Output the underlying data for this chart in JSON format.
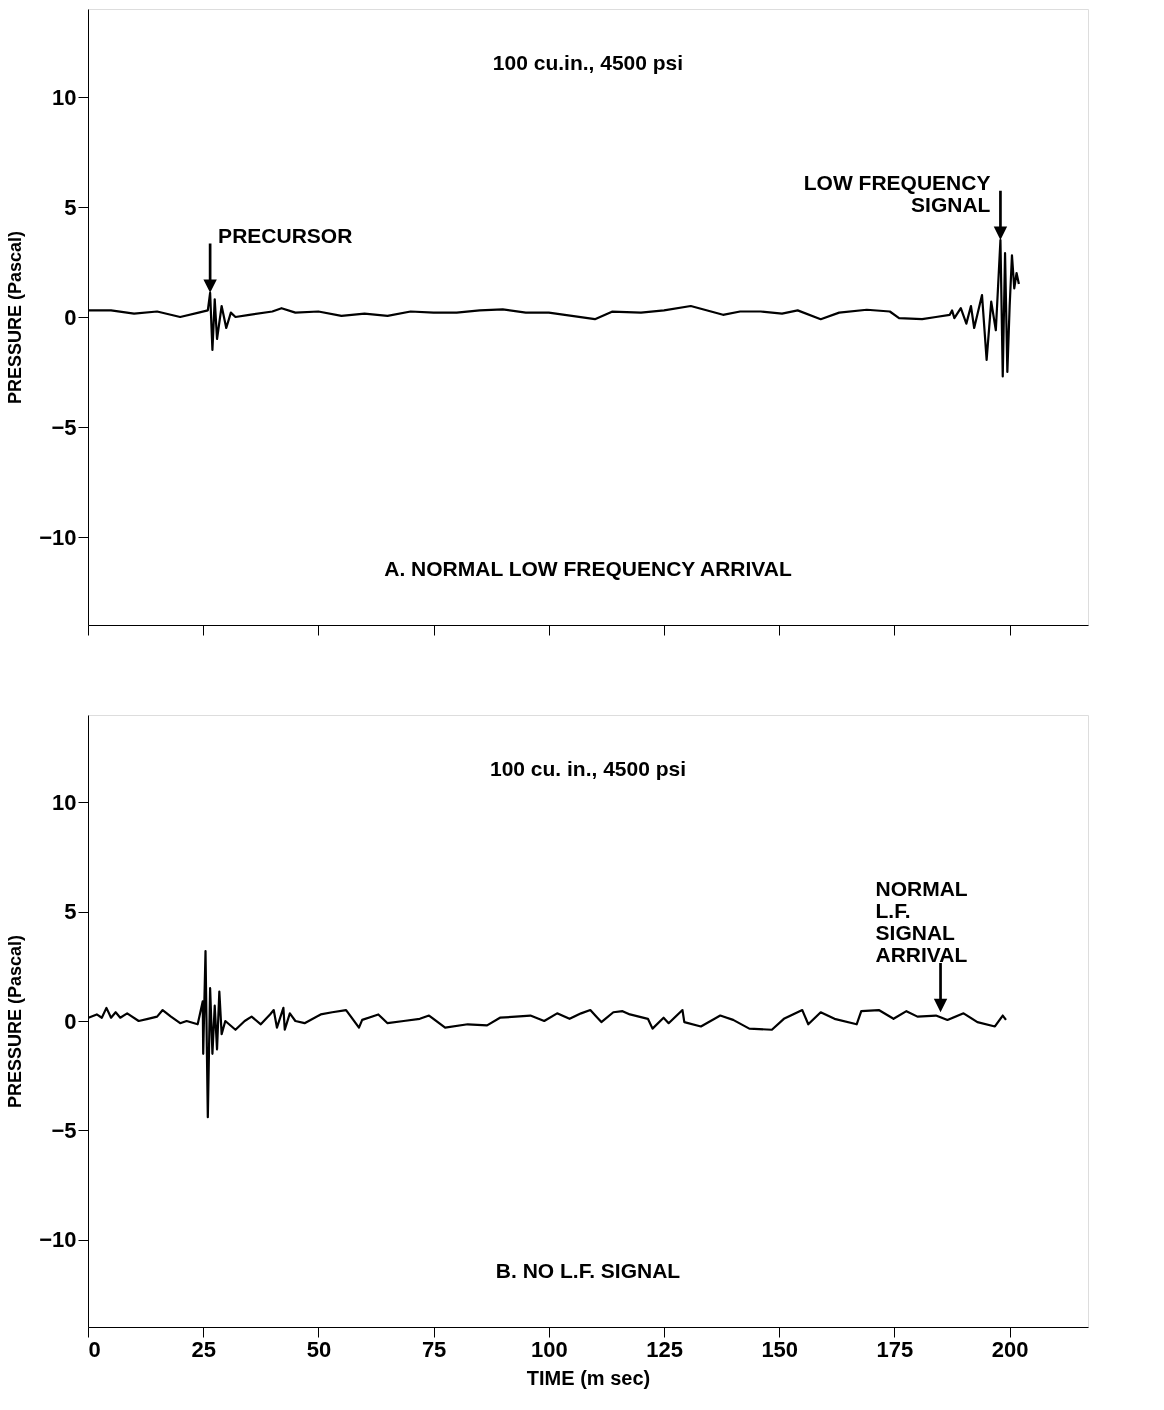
{
  "chart_data": [
    {
      "type": "line",
      "ylabel": "PRESSURE (Pascal)",
      "xlim": [
        0,
        217
      ],
      "ylim": [
        -14,
        14
      ],
      "xticks": [
        0,
        25,
        50,
        75,
        100,
        125,
        150,
        175,
        200
      ],
      "yticks": [
        -10,
        -5,
        0,
        5,
        10
      ],
      "tick_labels": "y",
      "grid": false,
      "legend": false,
      "annotations": [
        "100 cu.in., 4500 psi",
        "A.  NORMAL LOW FREQUENCY ARRIVAL",
        {
          "text": "PRECURSOR",
          "x": 26.5,
          "y": 1.1
        },
        {
          "text": "LOW FREQUENCY\nSIGNAL",
          "x": 198,
          "y": 3.5
        }
      ],
      "series": [
        {
          "color": "#000000",
          "x": [
            0,
            5,
            10,
            15,
            20,
            24,
            26,
            26.5,
            27,
            27.5,
            28,
            29,
            30,
            31,
            32,
            35,
            40,
            42,
            45,
            50,
            55,
            60,
            65,
            70,
            75,
            80,
            85,
            90,
            95,
            100,
            105,
            110,
            113.7,
            120,
            125,
            130.8,
            137.8,
            141.5,
            146,
            150.6,
            154,
            159,
            163,
            169,
            174,
            176,
            181,
            184,
            187,
            187.5,
            188,
            189.4,
            190.6,
            191.6,
            192.3,
            194,
            195,
            196,
            197,
            198,
            198.5,
            199,
            199.5,
            200,
            200.5,
            201,
            201.5,
            202
          ],
          "values": [
            0.3,
            0.3,
            0.15,
            0.25,
            0.0,
            0.2,
            0.3,
            1.1,
            -1.5,
            0.8,
            -1.0,
            0.5,
            -0.5,
            0.2,
            0.0,
            0.1,
            0.25,
            0.4,
            0.2,
            0.25,
            0.05,
            0.15,
            0.05,
            0.25,
            0.2,
            0.2,
            0.3,
            0.35,
            0.2,
            0.2,
            0.05,
            -0.1,
            0.24,
            0.2,
            0.3,
            0.5,
            0.1,
            0.25,
            0.25,
            0.15,
            0.3,
            -0.1,
            0.2,
            0.33,
            0.25,
            -0.05,
            -0.1,
            0.0,
            0.1,
            0.3,
            -0.05,
            0.4,
            -0.3,
            0.5,
            -0.5,
            1.0,
            -1.95,
            0.7,
            -0.6,
            3.5,
            -2.7,
            2.9,
            -2.5,
            0.5,
            2.8,
            1.3,
            2.0,
            1.5
          ]
        }
      ]
    },
    {
      "type": "line",
      "xlabel": "TIME (m sec)",
      "ylabel": "PRESSURE (Pascal)",
      "xlim": [
        0,
        217
      ],
      "ylim": [
        -14,
        14
      ],
      "xticks": [
        0,
        25,
        50,
        75,
        100,
        125,
        150,
        175,
        200
      ],
      "yticks": [
        -10,
        -5,
        0,
        5,
        10
      ],
      "grid": false,
      "legend": false,
      "annotations": [
        "100 cu. in., 4500 psi",
        "B.  NO L.F. SIGNAL",
        {
          "text": "NORMAL\nL.F.\nSIGNAL\nARRIVAL",
          "x": 185,
          "y": 0.4
        }
      ],
      "series": [
        {
          "color": "#000000",
          "x": [
            0.1,
            1.9,
            3,
            4,
            5,
            6,
            7,
            8.5,
            11,
            13,
            15,
            16.2,
            18,
            20,
            21.4,
            23.8,
            24.9,
            25,
            25.5,
            26,
            26.5,
            27,
            27.5,
            28,
            28.5,
            29,
            29.8,
            32,
            34,
            35.5,
            37.5,
            39.5,
            40.3,
            41,
            42.4,
            42.7,
            43.8,
            45,
            47,
            50.5,
            53,
            56,
            58.8,
            59.5,
            63,
            65,
            68.5,
            72,
            74,
            77.5,
            82.4,
            86.6,
            89.4,
            92.8,
            96,
            99,
            101.8,
            104.5,
            107,
            109,
            111.4,
            114,
            116,
            117.6,
            121.5,
            122.5,
            124.9,
            126,
            129,
            129.4,
            133,
            137.2,
            140,
            143.5,
            148.4,
            151,
            155,
            156.3,
            159,
            162,
            166.8,
            167.8,
            171.6,
            174.8,
            177.6,
            180,
            184,
            186.5,
            190,
            193,
            196.8,
            198.5,
            199.2
          ],
          "values": [
            0.15,
            0.3,
            0.15,
            0.6,
            0.15,
            0.4,
            0.15,
            0.35,
            0.0,
            0.1,
            0.2,
            0.5,
            0.2,
            -0.1,
            0.0,
            -0.15,
            0.9,
            -1.5,
            3.2,
            -4.4,
            1.5,
            -1.5,
            0.7,
            -1.3,
            1.35,
            -0.6,
            0.0,
            -0.4,
            0.0,
            0.2,
            -0.15,
            0.3,
            0.5,
            -0.3,
            0.6,
            -0.4,
            0.35,
            0.0,
            -0.1,
            0.3,
            0.4,
            0.5,
            -0.3,
            0.05,
            0.3,
            -0.1,
            0.0,
            0.1,
            0.25,
            -0.3,
            -0.15,
            -0.2,
            0.15,
            0.2,
            0.25,
            0.0,
            0.35,
            0.1,
            0.35,
            0.5,
            -0.05,
            0.4,
            0.45,
            0.3,
            0.1,
            -0.35,
            0.15,
            -0.1,
            0.5,
            -0.05,
            -0.25,
            0.25,
            0.05,
            -0.35,
            -0.4,
            0.1,
            0.5,
            -0.15,
            0.4,
            0.1,
            -0.15,
            0.45,
            0.5,
            0.1,
            0.45,
            0.2,
            0.25,
            0.05,
            0.35,
            -0.05,
            -0.25,
            0.25,
            0.05
          ]
        }
      ]
    }
  ]
}
